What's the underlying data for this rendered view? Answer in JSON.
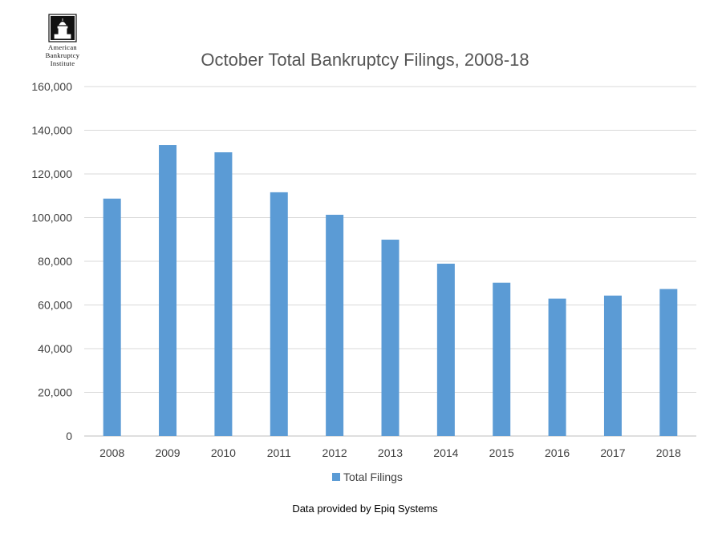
{
  "logo": {
    "lines": [
      "American",
      "Bankruptcy",
      "Institute"
    ]
  },
  "chart_data": {
    "type": "bar",
    "title": "October Total Bankruptcy Filings, 2008-18",
    "xlabel": "",
    "ylabel": "",
    "categories": [
      "2008",
      "2009",
      "2010",
      "2011",
      "2012",
      "2013",
      "2014",
      "2015",
      "2016",
      "2017",
      "2018"
    ],
    "series": [
      {
        "name": "Total Filings",
        "color": "#5b9bd5",
        "values": [
          108700,
          133200,
          129900,
          111600,
          101300,
          89900,
          78900,
          70200,
          62900,
          64300,
          67300
        ]
      }
    ],
    "ylim": [
      0,
      160000
    ],
    "yticks": [
      "0",
      "20,000",
      "40,000",
      "60,000",
      "80,000",
      "100,000",
      "120,000",
      "140,000",
      "160,000"
    ],
    "grid": true,
    "legend_position": "bottom"
  },
  "source_note": "Data provided by Epiq Systems"
}
